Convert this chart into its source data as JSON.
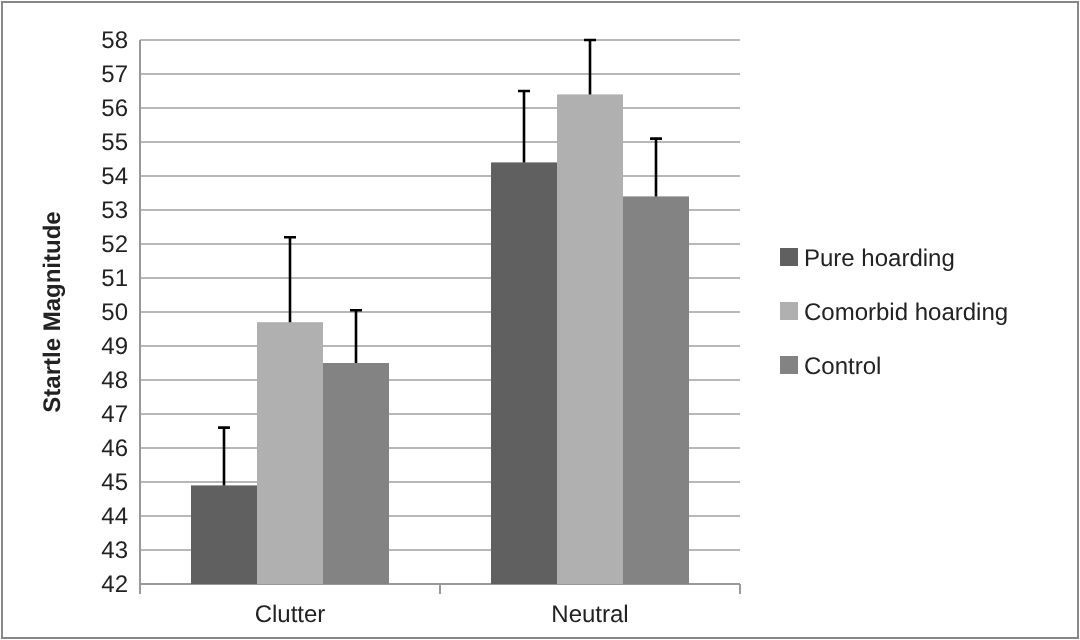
{
  "chart_data": {
    "type": "bar",
    "ylabel": "Startle Magnitude",
    "categories": [
      "Clutter",
      "Neutral"
    ],
    "series": [
      {
        "name": "Pure hoarding",
        "color": "#606060",
        "values": [
          44.9,
          54.4
        ],
        "errors": [
          [
            44.9,
            46.6
          ],
          [
            54.4,
            56.5
          ]
        ]
      },
      {
        "name": "Comorbid hoarding",
        "color": "#b0b0b0",
        "values": [
          49.7,
          56.4
        ],
        "errors": [
          [
            49.7,
            52.2
          ],
          [
            56.4,
            58
          ]
        ]
      },
      {
        "name": "Control",
        "color": "#838383",
        "values": [
          48.5,
          53.4
        ],
        "errors": [
          [
            48.5,
            50.05
          ],
          [
            53.4,
            55.1
          ]
        ]
      }
    ],
    "ylim": [
      42,
      58
    ],
    "yticks": [
      42,
      43,
      44,
      45,
      46,
      47,
      48,
      49,
      50,
      51,
      52,
      53,
      54,
      55,
      56,
      57,
      58
    ],
    "grid": "y",
    "legend": "right"
  }
}
